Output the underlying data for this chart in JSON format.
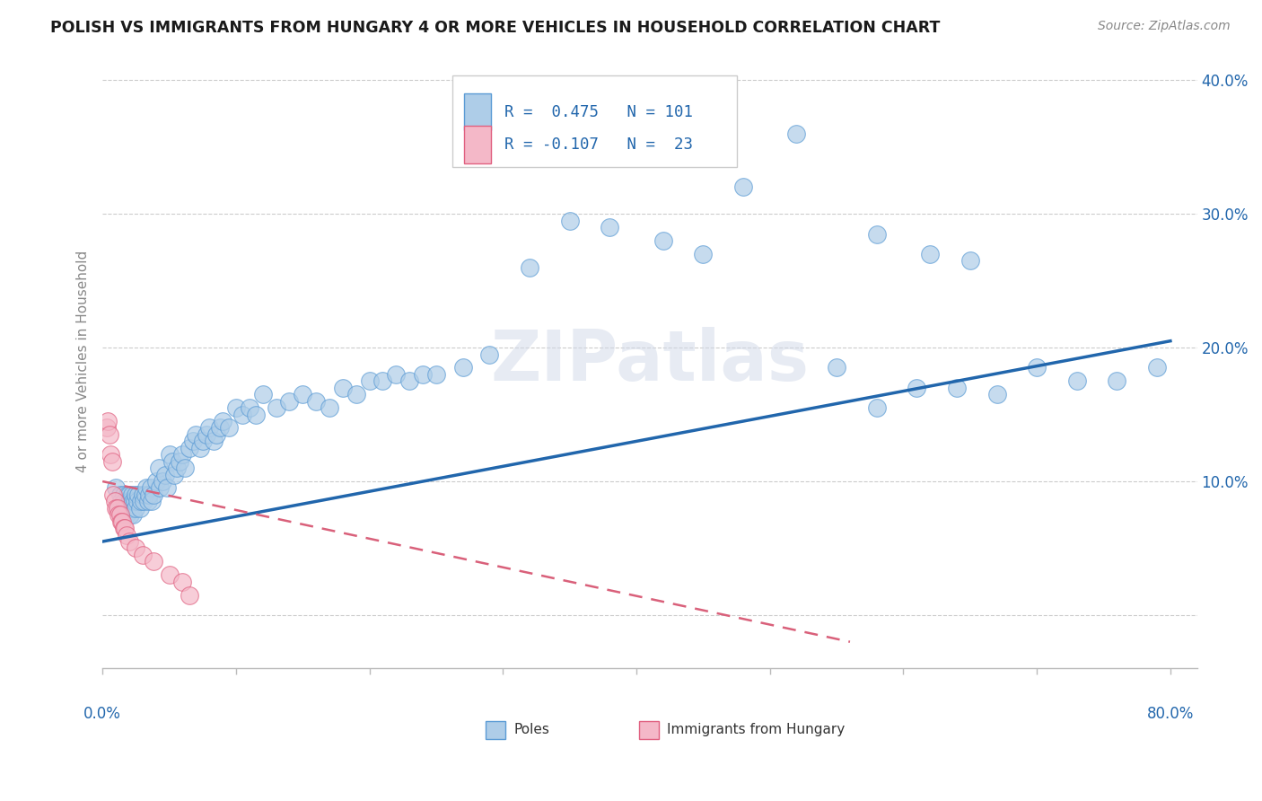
{
  "title": "POLISH VS IMMIGRANTS FROM HUNGARY 4 OR MORE VEHICLES IN HOUSEHOLD CORRELATION CHART",
  "source": "Source: ZipAtlas.com",
  "ylabel": "4 or more Vehicles in Household",
  "legend_r1": "R =  0.475",
  "legend_n1": "N = 101",
  "legend_r2": "R = -0.107",
  "legend_n2": "N =  23",
  "poles_color": "#aecde8",
  "poles_edge_color": "#5b9bd5",
  "hungary_color": "#f4b8c8",
  "hungary_edge_color": "#e06080",
  "poles_line_color": "#2166ac",
  "hungary_line_color": "#d9607a",
  "watermark": "ZIPatlas",
  "blue_scatter_x": [
    0.01,
    0.012,
    0.013,
    0.014,
    0.015,
    0.016,
    0.016,
    0.017,
    0.017,
    0.018,
    0.018,
    0.019,
    0.019,
    0.02,
    0.02,
    0.021,
    0.021,
    0.022,
    0.022,
    0.023,
    0.023,
    0.024,
    0.025,
    0.025,
    0.026,
    0.027,
    0.028,
    0.029,
    0.03,
    0.031,
    0.032,
    0.033,
    0.034,
    0.035,
    0.036,
    0.037,
    0.038,
    0.04,
    0.042,
    0.043,
    0.045,
    0.047,
    0.048,
    0.05,
    0.052,
    0.054,
    0.056,
    0.058,
    0.06,
    0.062,
    0.065,
    0.068,
    0.07,
    0.073,
    0.075,
    0.078,
    0.08,
    0.083,
    0.085,
    0.088,
    0.09,
    0.095,
    0.1,
    0.105,
    0.11,
    0.115,
    0.12,
    0.13,
    0.14,
    0.15,
    0.16,
    0.17,
    0.18,
    0.19,
    0.2,
    0.21,
    0.22,
    0.23,
    0.24,
    0.25,
    0.27,
    0.29,
    0.32,
    0.35,
    0.38,
    0.42,
    0.45,
    0.48,
    0.52,
    0.55,
    0.58,
    0.61,
    0.64,
    0.67,
    0.7,
    0.73,
    0.76,
    0.79,
    0.58,
    0.62,
    0.65
  ],
  "blue_scatter_y": [
    0.095,
    0.08,
    0.09,
    0.085,
    0.075,
    0.085,
    0.09,
    0.08,
    0.085,
    0.075,
    0.08,
    0.09,
    0.085,
    0.08,
    0.09,
    0.075,
    0.085,
    0.08,
    0.09,
    0.075,
    0.085,
    0.085,
    0.08,
    0.09,
    0.085,
    0.09,
    0.08,
    0.085,
    0.09,
    0.085,
    0.09,
    0.095,
    0.085,
    0.09,
    0.095,
    0.085,
    0.09,
    0.1,
    0.11,
    0.095,
    0.1,
    0.105,
    0.095,
    0.12,
    0.115,
    0.105,
    0.11,
    0.115,
    0.12,
    0.11,
    0.125,
    0.13,
    0.135,
    0.125,
    0.13,
    0.135,
    0.14,
    0.13,
    0.135,
    0.14,
    0.145,
    0.14,
    0.155,
    0.15,
    0.155,
    0.15,
    0.165,
    0.155,
    0.16,
    0.165,
    0.16,
    0.155,
    0.17,
    0.165,
    0.175,
    0.175,
    0.18,
    0.175,
    0.18,
    0.18,
    0.185,
    0.195,
    0.26,
    0.295,
    0.29,
    0.28,
    0.27,
    0.32,
    0.36,
    0.185,
    0.155,
    0.17,
    0.17,
    0.165,
    0.185,
    0.175,
    0.175,
    0.185,
    0.285,
    0.27,
    0.265
  ],
  "pink_scatter_x": [
    0.003,
    0.004,
    0.005,
    0.006,
    0.007,
    0.008,
    0.009,
    0.01,
    0.011,
    0.012,
    0.013,
    0.014,
    0.015,
    0.016,
    0.017,
    0.018,
    0.02,
    0.025,
    0.03,
    0.038,
    0.05,
    0.06,
    0.065
  ],
  "pink_scatter_y": [
    0.14,
    0.145,
    0.135,
    0.12,
    0.115,
    0.09,
    0.085,
    0.08,
    0.08,
    0.075,
    0.075,
    0.07,
    0.07,
    0.065,
    0.065,
    0.06,
    0.055,
    0.05,
    0.045,
    0.04,
    0.03,
    0.025,
    0.015
  ],
  "blue_line_x": [
    0.0,
    0.8
  ],
  "blue_line_y": [
    0.055,
    0.205
  ],
  "pink_line_x": [
    0.0,
    0.56
  ],
  "pink_line_y": [
    0.1,
    -0.02
  ],
  "xlim": [
    0.0,
    0.82
  ],
  "ylim": [
    -0.04,
    0.42
  ],
  "yticks": [
    0.0,
    0.1,
    0.2,
    0.3,
    0.4
  ],
  "ytick_labels": [
    "",
    "10.0%",
    "20.0%",
    "30.0%",
    "40.0%"
  ],
  "xtick_positions": [
    0.0,
    0.1,
    0.2,
    0.3,
    0.4,
    0.5,
    0.6,
    0.7,
    0.8
  ]
}
